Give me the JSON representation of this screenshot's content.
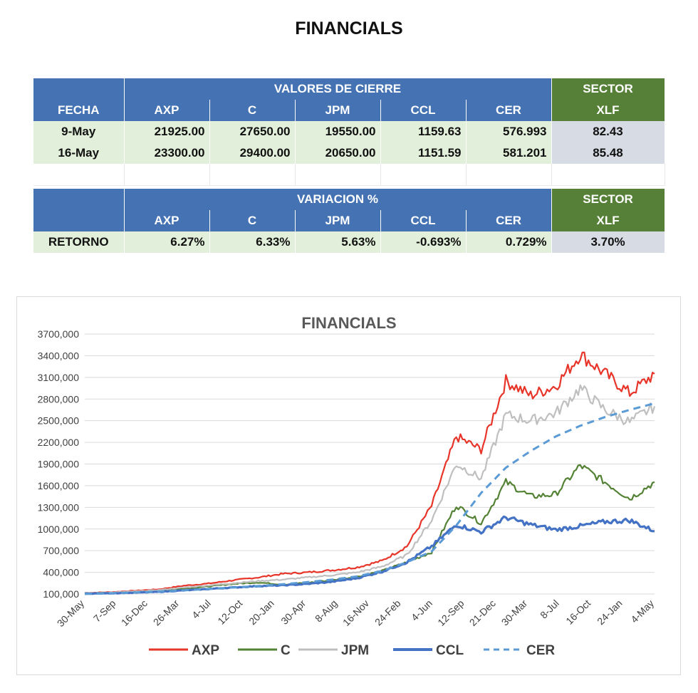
{
  "page_title": "FINANCIALS",
  "table1": {
    "group_label": "VALORES DE CIERRE",
    "sector_label": "SECTOR",
    "headers": [
      "FECHA",
      "AXP",
      "C",
      "JPM",
      "CCL",
      "CER",
      "XLF"
    ],
    "rows": [
      [
        "9-May",
        "21925.00",
        "27650.00",
        "19550.00",
        "1159.63",
        "576.993",
        "82.43"
      ],
      [
        "16-May",
        "23300.00",
        "29400.00",
        "20650.00",
        "1151.59",
        "581.201",
        "85.48"
      ]
    ]
  },
  "table2": {
    "group_label": "VARIACION %",
    "sector_label": "SECTOR",
    "headers": [
      "",
      "AXP",
      "C",
      "JPM",
      "CCL",
      "CER",
      "XLF"
    ],
    "row": [
      "RETORNO",
      "6.27%",
      "6.33%",
      "5.63%",
      "-0.693%",
      "0.729%",
      "3.70%"
    ]
  },
  "colors": {
    "header_blue": "#4472b3",
    "sector_green": "#568037",
    "row_green": "#e2efda",
    "xlf_grey": "#d7dbe4"
  },
  "chart_data": {
    "type": "line",
    "title": "FINANCIALS",
    "ylim": [
      100000,
      3700000
    ],
    "yticks": [
      "3700,000",
      "3400,000",
      "3100,000",
      "2800,000",
      "2500,000",
      "2200,000",
      "1900,000",
      "1600,000",
      "1300,000",
      "1000,000",
      "700,000",
      "400,000",
      "100,000"
    ],
    "x_tick_labels": [
      "30-May",
      "7-Sep",
      "16-Dec",
      "26-Mar",
      "4-Jul",
      "12-Oct",
      "20-Jan",
      "30-Apr",
      "8-Aug",
      "16-Nov",
      "24-Feb",
      "4-Jun",
      "12-Sep",
      "21-Dec",
      "30-Mar",
      "8-Jul",
      "16-Oct",
      "24-Jan",
      "4-May"
    ],
    "grid": true,
    "legend_position": "bottom",
    "series": [
      {
        "name": "AXP",
        "color": "#e8352a",
        "dash": "solid",
        "values": [
          115000,
          125000,
          145000,
          165000,
          215000,
          245000,
          290000,
          330000,
          380000,
          400000,
          430000,
          470000,
          560000,
          760000,
          1320000,
          2280000,
          2100000,
          3050000,
          2850000,
          2980000,
          3420000,
          3150000,
          2880000,
          3150000
        ]
      },
      {
        "name": "C",
        "color": "#548235",
        "dash": "solid",
        "values": [
          110000,
          118000,
          128000,
          145000,
          175000,
          205000,
          240000,
          260000,
          230000,
          255000,
          290000,
          340000,
          420000,
          540000,
          680000,
          1330000,
          1080000,
          1650000,
          1450000,
          1480000,
          1880000,
          1650000,
          1420000,
          1650000
        ]
      },
      {
        "name": "JPM",
        "color": "#bfbfbf",
        "dash": "solid",
        "values": [
          112000,
          120000,
          135000,
          155000,
          190000,
          220000,
          250000,
          280000,
          300000,
          330000,
          360000,
          400000,
          480000,
          640000,
          1120000,
          1900000,
          1700000,
          2580000,
          2500000,
          2600000,
          2950000,
          2650000,
          2480000,
          2700000
        ]
      },
      {
        "name": "CCL",
        "color": "#4472c4",
        "dash": "solid",
        "values": [
          105000,
          110000,
          118000,
          130000,
          150000,
          170000,
          190000,
          210000,
          220000,
          240000,
          270000,
          320000,
          410000,
          540000,
          760000,
          1060000,
          960000,
          1160000,
          1060000,
          990000,
          1040000,
          1100000,
          1120000,
          970000
        ]
      },
      {
        "name": "CER",
        "color": "#5b9bd5",
        "dash": "dash",
        "values": [
          100000,
          110000,
          120000,
          135000,
          150000,
          170000,
          190000,
          210000,
          235000,
          265000,
          300000,
          345000,
          420000,
          540000,
          690000,
          1050000,
          1500000,
          1850000,
          2080000,
          2280000,
          2430000,
          2550000,
          2650000,
          2740000
        ]
      }
    ]
  }
}
